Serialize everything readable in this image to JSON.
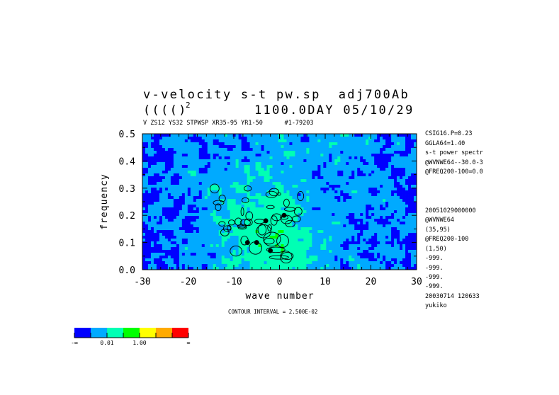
{
  "title": {
    "line1": "v-velocity s-t pw.sp  adj700Ab",
    "line2_left": "(((()",
    "line2_sup": "2",
    "line2_right": "1100.0DAY 05/10/29",
    "subtitle": "V ZS12 YS32 STPWSP XR35-95 YR1-50      #1-79203"
  },
  "side_info": [
    "CSIG16.P=0.23",
    "GGLA64=1.40",
    "s-t power spectr",
    "@WVNWE64--30.0-3",
    "@FREQ200-100=0.0",
    "20051029000000",
    "@WVNWE64",
    "(35,95)",
    "@FREQ200-100",
    "(1,50)",
    "-999.",
    "-999.",
    "-999.",
    "-999.",
    "20030714 120633",
    "yukiko"
  ],
  "contour_interval": "CONTOUR INTERVAL = 2.500E-02",
  "chart_data": {
    "type": "heatmap",
    "title": "v-velocity s-t pw.sp  adj700Ab",
    "xlabel": "wave number",
    "ylabel": "frequency",
    "xlim": [
      -30,
      30
    ],
    "ylim": [
      0.0,
      0.5
    ],
    "x_ticks": [
      -30,
      -20,
      -10,
      0,
      10,
      20,
      30
    ],
    "x_tick_labels": [
      "-30",
      "-20",
      "-10",
      "0",
      "10",
      "20",
      "30"
    ],
    "y_ticks": [
      0.0,
      0.1,
      0.2,
      0.3,
      0.4,
      0.5
    ],
    "y_tick_labels": [
      "0.0",
      "0.1",
      "0.2",
      "0.3",
      "0.4",
      "0.5"
    ],
    "grid": false,
    "contour_lines": "black",
    "colorbar": {
      "colors": [
        "#0000ff",
        "#00aaff",
        "#00ffb4",
        "#00ff00",
        "#ffff00",
        "#ffaa00",
        "#ff0000"
      ],
      "labels": [
        "-∞",
        "0.01",
        "1.00",
        "∞"
      ],
      "placement": "bottom-left"
    }
  }
}
